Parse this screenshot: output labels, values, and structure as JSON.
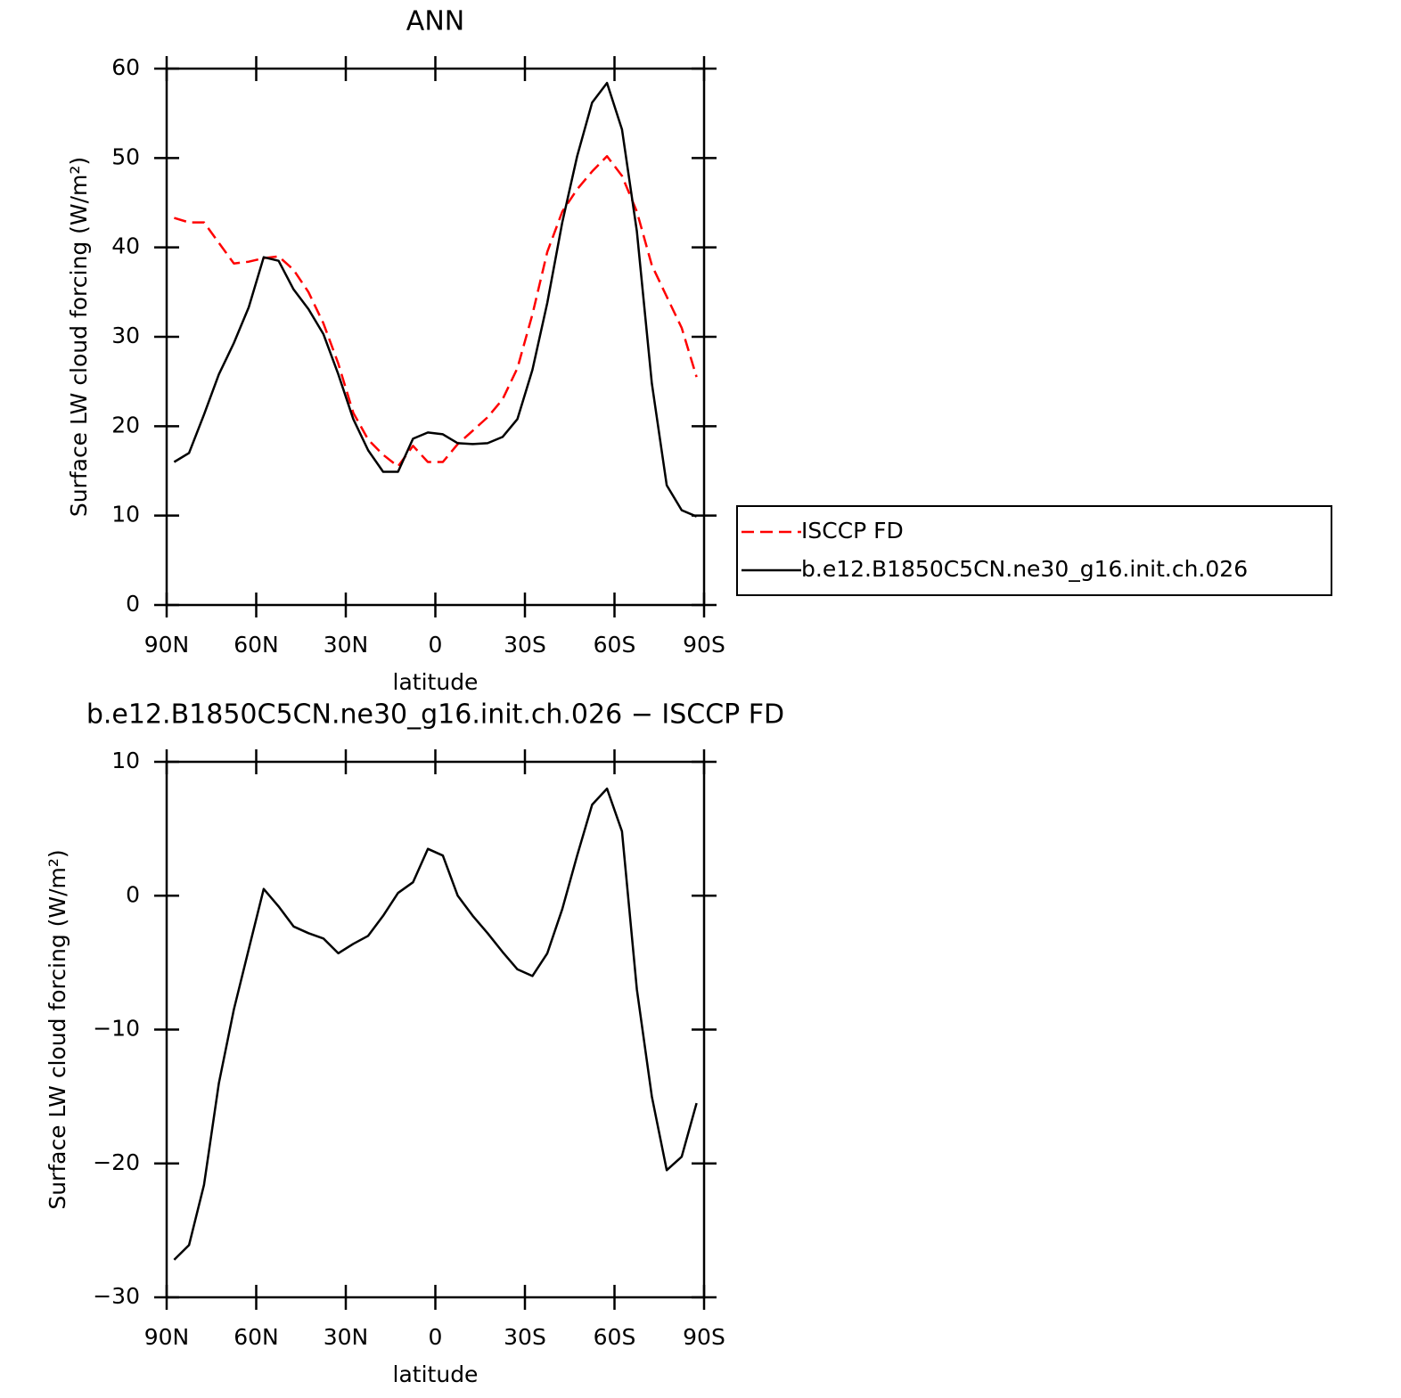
{
  "chart_data": [
    {
      "type": "line",
      "title": "ANN",
      "x_label": "latitude",
      "y_label": "Surface LW cloud forcing (W/m²)",
      "x": [
        87.5,
        82.5,
        77.5,
        72.5,
        67.5,
        62.5,
        57.5,
        52.5,
        47.5,
        42.5,
        37.5,
        32.5,
        27.5,
        22.5,
        17.5,
        12.5,
        7.5,
        2.5,
        -2.5,
        -7.5,
        -12.5,
        -17.5,
        -22.5,
        -27.5,
        -32.5,
        -37.5,
        -42.5,
        -47.5,
        -52.5,
        -57.5,
        -62.5,
        -67.5,
        -72.5,
        -77.5,
        -82.5,
        -87.5
      ],
      "series": [
        {
          "name": "ISCCP FD",
          "color": "#ff0000",
          "dash": true,
          "values": [
            43.3,
            42.8,
            42.8,
            40.5,
            38.2,
            38.4,
            38.8,
            39.0,
            37.5,
            35.0,
            31.5,
            27.0,
            21.5,
            18.5,
            16.8,
            15.5,
            17.8,
            16.0,
            16.0,
            18.0,
            19.5,
            21.0,
            23.0,
            26.5,
            32.5,
            39.5,
            44.0,
            46.5,
            48.5,
            50.2,
            48.0,
            44.0,
            38.0,
            34.5,
            31.0,
            25.5
          ]
        },
        {
          "name": "b.e12.B1850C5CN.ne30_g16.init.ch.026",
          "color": "#000000",
          "values": [
            16.0,
            17.0,
            21.3,
            25.8,
            29.3,
            33.3,
            38.9,
            38.5,
            35.3,
            33.1,
            30.3,
            25.8,
            20.8,
            17.3,
            14.9,
            14.9,
            18.6,
            19.3,
            19.1,
            18.1,
            18.0,
            18.1,
            18.8,
            20.8,
            26.3,
            33.8,
            42.8,
            50.2,
            56.2,
            58.4,
            53.2,
            41.8,
            24.8,
            13.4,
            10.6,
            9.9
          ]
        }
      ],
      "xlim": [
        90,
        -90
      ],
      "xticks": [
        {
          "value": 90,
          "label": "90N"
        },
        {
          "value": 60,
          "label": "60N"
        },
        {
          "value": 30,
          "label": "30N"
        },
        0,
        {
          "value": -30,
          "label": "30S"
        },
        {
          "value": -60,
          "label": "60S"
        },
        {
          "value": -90,
          "label": "90S"
        }
      ],
      "ylim": [
        0,
        60
      ],
      "yticks": [
        0,
        10,
        20,
        30,
        40,
        50,
        60
      ],
      "legend": "right"
    },
    {
      "type": "line",
      "title": "b.e12.B1850C5CN.ne30_g16.init.ch.026 − ISCCP FD",
      "x_label": "latitude",
      "y_label": "Surface LW cloud forcing (W/m²)",
      "x": [
        87.5,
        82.5,
        77.5,
        72.5,
        67.5,
        62.5,
        57.5,
        52.5,
        47.5,
        42.5,
        37.5,
        32.5,
        27.5,
        22.5,
        17.5,
        12.5,
        7.5,
        2.5,
        -2.5,
        -7.5,
        -12.5,
        -17.5,
        -22.5,
        -27.5,
        -32.5,
        -37.5,
        -42.5,
        -47.5,
        -52.5,
        -57.5,
        -62.5,
        -67.5,
        -72.5,
        -77.5,
        -82.5,
        -87.5
      ],
      "series": [
        {
          "color": "#000000",
          "values": [
            -27.2,
            -26.1,
            -21.6,
            -14.0,
            -8.5,
            -4.0,
            0.5,
            -0.8,
            -2.3,
            -2.8,
            -3.2,
            -4.3,
            -3.6,
            -3.0,
            -1.5,
            0.2,
            1.0,
            3.5,
            3.0,
            0.0,
            -1.5,
            -2.8,
            -4.2,
            -5.5,
            -6.0,
            -4.3,
            -1.0,
            3.0,
            6.8,
            8.0,
            4.8,
            -7.0,
            -15.0,
            -20.5,
            -19.5,
            -15.5
          ]
        }
      ],
      "xlim": [
        90,
        -90
      ],
      "xticks": [
        {
          "value": 90,
          "label": "90N"
        },
        {
          "value": 60,
          "label": "60N"
        },
        {
          "value": 30,
          "label": "30N"
        },
        0,
        {
          "value": -30,
          "label": "30S"
        },
        {
          "value": -60,
          "label": "60S"
        },
        {
          "value": -90,
          "label": "90S"
        }
      ],
      "ylim": [
        -30,
        10
      ],
      "yticks": [
        {
          "value": -30,
          "label": "−30"
        },
        {
          "value": -20,
          "label": "−20"
        },
        {
          "value": -10,
          "label": "−10"
        },
        0,
        10
      ]
    }
  ]
}
